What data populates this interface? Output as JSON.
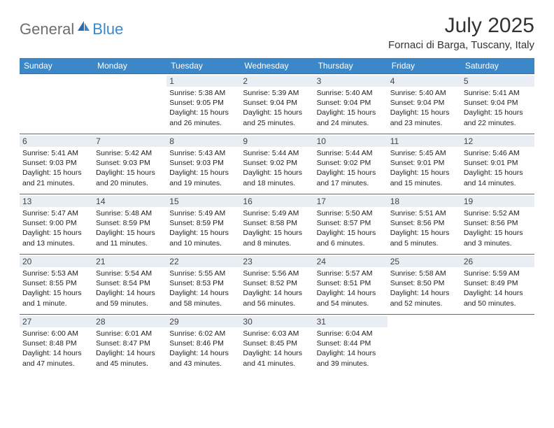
{
  "logo": {
    "text_gray": "General",
    "text_blue": "Blue"
  },
  "header": {
    "month_title": "July 2025",
    "location": "Fornaci di Barga, Tuscany, Italy"
  },
  "colors": {
    "header_bg": "#3b87c8",
    "header_text": "#ffffff",
    "daynum_bg": "#e8eef3",
    "border": "#3b72a0",
    "logo_gray": "#6e6e6e",
    "logo_blue": "#3b87c8",
    "text": "#222222"
  },
  "weekdays": [
    "Sunday",
    "Monday",
    "Tuesday",
    "Wednesday",
    "Thursday",
    "Friday",
    "Saturday"
  ],
  "weeks": [
    [
      null,
      null,
      {
        "n": "1",
        "sr": "5:38 AM",
        "ss": "9:05 PM",
        "dl": "15 hours and 26 minutes."
      },
      {
        "n": "2",
        "sr": "5:39 AM",
        "ss": "9:04 PM",
        "dl": "15 hours and 25 minutes."
      },
      {
        "n": "3",
        "sr": "5:40 AM",
        "ss": "9:04 PM",
        "dl": "15 hours and 24 minutes."
      },
      {
        "n": "4",
        "sr": "5:40 AM",
        "ss": "9:04 PM",
        "dl": "15 hours and 23 minutes."
      },
      {
        "n": "5",
        "sr": "5:41 AM",
        "ss": "9:04 PM",
        "dl": "15 hours and 22 minutes."
      }
    ],
    [
      {
        "n": "6",
        "sr": "5:41 AM",
        "ss": "9:03 PM",
        "dl": "15 hours and 21 minutes."
      },
      {
        "n": "7",
        "sr": "5:42 AM",
        "ss": "9:03 PM",
        "dl": "15 hours and 20 minutes."
      },
      {
        "n": "8",
        "sr": "5:43 AM",
        "ss": "9:03 PM",
        "dl": "15 hours and 19 minutes."
      },
      {
        "n": "9",
        "sr": "5:44 AM",
        "ss": "9:02 PM",
        "dl": "15 hours and 18 minutes."
      },
      {
        "n": "10",
        "sr": "5:44 AM",
        "ss": "9:02 PM",
        "dl": "15 hours and 17 minutes."
      },
      {
        "n": "11",
        "sr": "5:45 AM",
        "ss": "9:01 PM",
        "dl": "15 hours and 15 minutes."
      },
      {
        "n": "12",
        "sr": "5:46 AM",
        "ss": "9:01 PM",
        "dl": "15 hours and 14 minutes."
      }
    ],
    [
      {
        "n": "13",
        "sr": "5:47 AM",
        "ss": "9:00 PM",
        "dl": "15 hours and 13 minutes."
      },
      {
        "n": "14",
        "sr": "5:48 AM",
        "ss": "8:59 PM",
        "dl": "15 hours and 11 minutes."
      },
      {
        "n": "15",
        "sr": "5:49 AM",
        "ss": "8:59 PM",
        "dl": "15 hours and 10 minutes."
      },
      {
        "n": "16",
        "sr": "5:49 AM",
        "ss": "8:58 PM",
        "dl": "15 hours and 8 minutes."
      },
      {
        "n": "17",
        "sr": "5:50 AM",
        "ss": "8:57 PM",
        "dl": "15 hours and 6 minutes."
      },
      {
        "n": "18",
        "sr": "5:51 AM",
        "ss": "8:56 PM",
        "dl": "15 hours and 5 minutes."
      },
      {
        "n": "19",
        "sr": "5:52 AM",
        "ss": "8:56 PM",
        "dl": "15 hours and 3 minutes."
      }
    ],
    [
      {
        "n": "20",
        "sr": "5:53 AM",
        "ss": "8:55 PM",
        "dl": "15 hours and 1 minute."
      },
      {
        "n": "21",
        "sr": "5:54 AM",
        "ss": "8:54 PM",
        "dl": "14 hours and 59 minutes."
      },
      {
        "n": "22",
        "sr": "5:55 AM",
        "ss": "8:53 PM",
        "dl": "14 hours and 58 minutes."
      },
      {
        "n": "23",
        "sr": "5:56 AM",
        "ss": "8:52 PM",
        "dl": "14 hours and 56 minutes."
      },
      {
        "n": "24",
        "sr": "5:57 AM",
        "ss": "8:51 PM",
        "dl": "14 hours and 54 minutes."
      },
      {
        "n": "25",
        "sr": "5:58 AM",
        "ss": "8:50 PM",
        "dl": "14 hours and 52 minutes."
      },
      {
        "n": "26",
        "sr": "5:59 AM",
        "ss": "8:49 PM",
        "dl": "14 hours and 50 minutes."
      }
    ],
    [
      {
        "n": "27",
        "sr": "6:00 AM",
        "ss": "8:48 PM",
        "dl": "14 hours and 47 minutes."
      },
      {
        "n": "28",
        "sr": "6:01 AM",
        "ss": "8:47 PM",
        "dl": "14 hours and 45 minutes."
      },
      {
        "n": "29",
        "sr": "6:02 AM",
        "ss": "8:46 PM",
        "dl": "14 hours and 43 minutes."
      },
      {
        "n": "30",
        "sr": "6:03 AM",
        "ss": "8:45 PM",
        "dl": "14 hours and 41 minutes."
      },
      {
        "n": "31",
        "sr": "6:04 AM",
        "ss": "8:44 PM",
        "dl": "14 hours and 39 minutes."
      },
      null,
      null
    ]
  ],
  "labels": {
    "sunrise": "Sunrise:",
    "sunset": "Sunset:",
    "daylight": "Daylight:"
  }
}
